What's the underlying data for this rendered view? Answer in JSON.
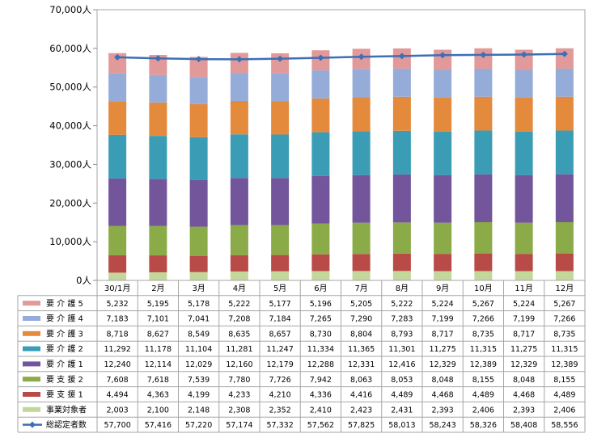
{
  "chart_data": {
    "type": "bar",
    "stacked": true,
    "categories": [
      "30/1月",
      "2月",
      "3月",
      "4月",
      "5月",
      "6月",
      "7月",
      "8月",
      "9月",
      "10月",
      "11月",
      "12月"
    ],
    "ylim": [
      0,
      70000
    ],
    "y_ticks": [
      "0人",
      "10,000人",
      "20,000人",
      "30,000人",
      "40,000人",
      "50,000人",
      "60,000人",
      "70,000人"
    ],
    "grid": false,
    "series": [
      {
        "name": "事業対象者",
        "color": "#c4d79b",
        "values": [
          2003,
          2100,
          2148,
          2308,
          2352,
          2410,
          2423,
          2431,
          2393,
          2406,
          2393,
          2406
        ],
        "labels": [
          "2,003",
          "2,100",
          "2,148",
          "2,308",
          "2,352",
          "2,410",
          "2,423",
          "2,431",
          "2,393",
          "2,406",
          "2,393",
          "2,406"
        ]
      },
      {
        "name": "要 支 援 1",
        "color": "#b84a47",
        "values": [
          4494,
          4363,
          4199,
          4233,
          4210,
          4336,
          4416,
          4489,
          4468,
          4489,
          4468,
          4489
        ],
        "labels": [
          "4,494",
          "4,363",
          "4,199",
          "4,233",
          "4,210",
          "4,336",
          "4,416",
          "4,489",
          "4,468",
          "4,489",
          "4,468",
          "4,489"
        ]
      },
      {
        "name": "要 支 援 2",
        "color": "#8aab47",
        "values": [
          7608,
          7618,
          7539,
          7780,
          7726,
          7942,
          8063,
          8053,
          8048,
          8155,
          8048,
          8155
        ],
        "labels": [
          "7,608",
          "7,618",
          "7,539",
          "7,780",
          "7,726",
          "7,942",
          "8,063",
          "8,053",
          "8,048",
          "8,155",
          "8,048",
          "8,155"
        ]
      },
      {
        "name": "要 介 護 1",
        "color": "#72559a",
        "values": [
          12240,
          12114,
          12029,
          12160,
          12179,
          12288,
          12331,
          12416,
          12329,
          12389,
          12329,
          12389
        ],
        "labels": [
          "12,240",
          "12,114",
          "12,029",
          "12,160",
          "12,179",
          "12,288",
          "12,331",
          "12,416",
          "12,329",
          "12,389",
          "12,329",
          "12,389"
        ]
      },
      {
        "name": "要 介 護 2",
        "color": "#3a9cb5",
        "values": [
          11292,
          11178,
          11104,
          11281,
          11247,
          11334,
          11365,
          11301,
          11275,
          11315,
          11275,
          11315
        ],
        "labels": [
          "11,292",
          "11,178",
          "11,104",
          "11,281",
          "11,247",
          "11,334",
          "11,365",
          "11,301",
          "11,275",
          "11,315",
          "11,275",
          "11,315"
        ]
      },
      {
        "name": "要 介 護 3",
        "color": "#e38a3d",
        "values": [
          8718,
          8627,
          8549,
          8635,
          8657,
          8730,
          8804,
          8793,
          8717,
          8735,
          8717,
          8735
        ],
        "labels": [
          "8,718",
          "8,627",
          "8,549",
          "8,635",
          "8,657",
          "8,730",
          "8,804",
          "8,793",
          "8,717",
          "8,735",
          "8,717",
          "8,735"
        ]
      },
      {
        "name": "要 介 護 4",
        "color": "#96acd8",
        "values": [
          7183,
          7101,
          7041,
          7208,
          7184,
          7265,
          7290,
          7283,
          7199,
          7266,
          7199,
          7266
        ],
        "labels": [
          "7,183",
          "7,101",
          "7,041",
          "7,208",
          "7,184",
          "7,265",
          "7,290",
          "7,283",
          "7,199",
          "7,266",
          "7,199",
          "7,266"
        ]
      },
      {
        "name": "要 介 護 5",
        "color": "#e1999a",
        "values": [
          5232,
          5195,
          5178,
          5222,
          5177,
          5196,
          5205,
          5222,
          5224,
          5267,
          5224,
          5267
        ],
        "labels": [
          "5,232",
          "5,195",
          "5,178",
          "5,222",
          "5,177",
          "5,196",
          "5,205",
          "5,222",
          "5,224",
          "5,267",
          "5,224",
          "5,267"
        ]
      }
    ],
    "line": {
      "name": "総認定者数",
      "color": "#3c6fb4",
      "values": [
        57700,
        57416,
        57220,
        57174,
        57332,
        57562,
        57825,
        58013,
        58243,
        58326,
        58408,
        58556
      ],
      "labels": [
        "57,700",
        "57,416",
        "57,220",
        "57,174",
        "57,332",
        "57,562",
        "57,825",
        "58,013",
        "58,243",
        "58,326",
        "58,408",
        "58,556"
      ]
    },
    "table_row_order": [
      "要 介 護 5",
      "要 介 護 4",
      "要 介 護 3",
      "要 介 護 2",
      "要 介 護 1",
      "要 支 援 2",
      "要 支 援 1",
      "事業対象者",
      "総認定者数"
    ]
  }
}
